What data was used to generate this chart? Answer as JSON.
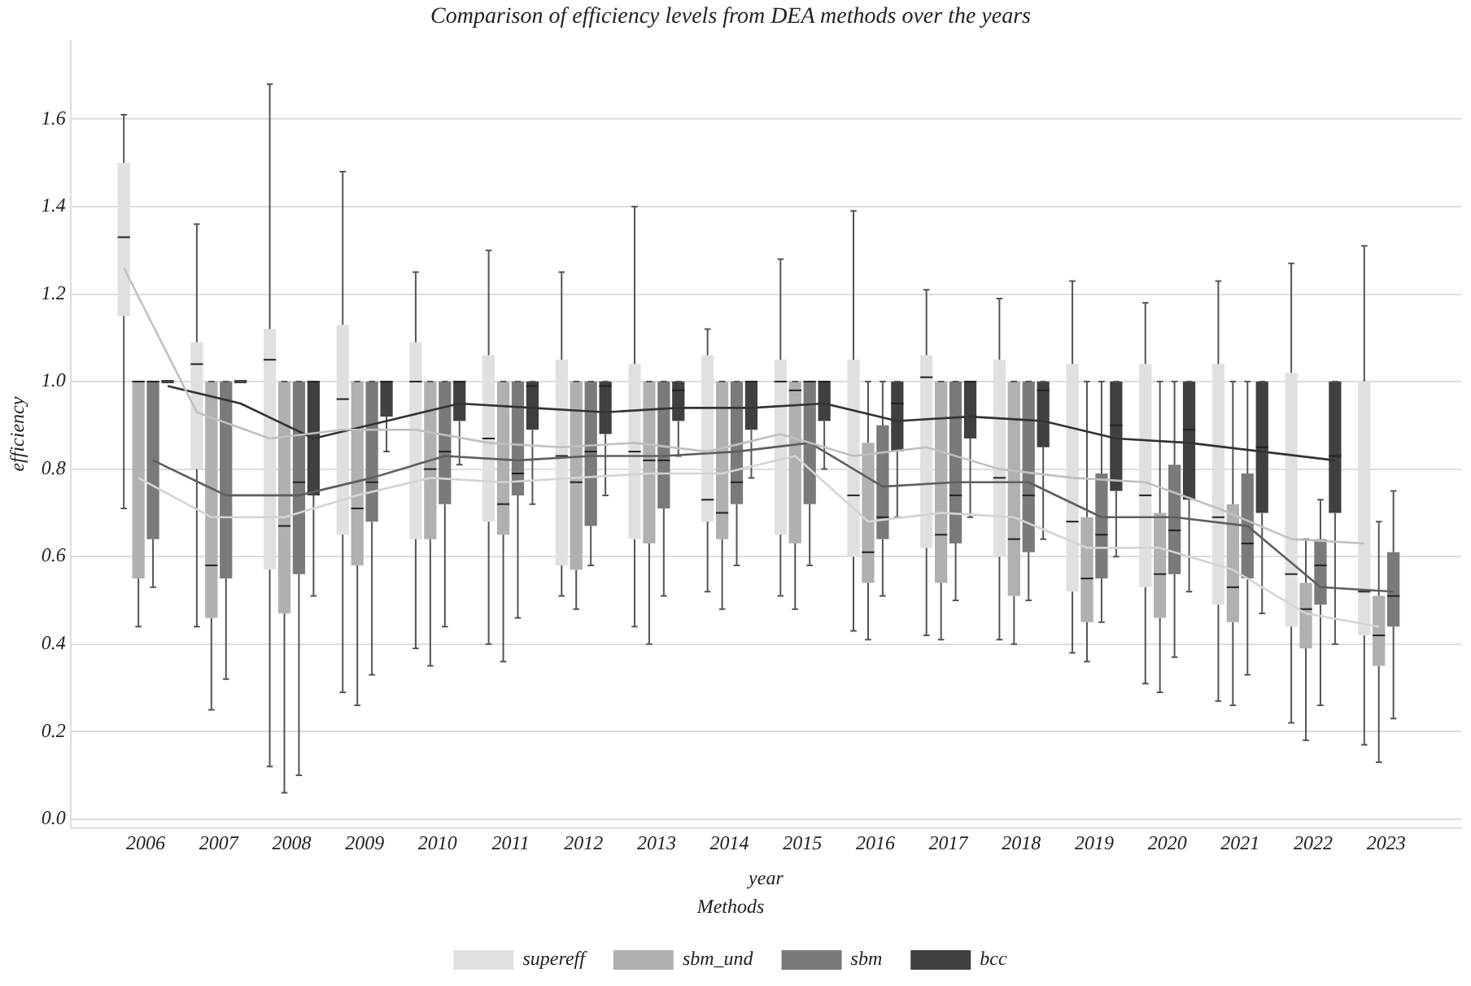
{
  "chart_data": {
    "type": "box",
    "title": "Comparison of efficiency levels from DEA methods over the years",
    "xlabel": "year",
    "ylabel": "efficiency",
    "legend_title": "Methods",
    "legend": "bottom",
    "grid": "y",
    "categories": [
      "2006",
      "2007",
      "2008",
      "2009",
      "2010",
      "2011",
      "2012",
      "2013",
      "2014",
      "2015",
      "2016",
      "2017",
      "2018",
      "2019",
      "2020",
      "2021",
      "2022",
      "2023"
    ],
    "ylim": [
      -0.02,
      1.78
    ],
    "yticks": [
      {
        "value": 0,
        "label": "0.0"
      },
      {
        "value": 0.2,
        "label": "0.2"
      },
      {
        "value": 0.4,
        "label": "0.4"
      },
      {
        "value": 0.6,
        "label": "0.6"
      },
      {
        "value": 0.8,
        "label": "0.8"
      },
      {
        "value": 1,
        "label": "1.0"
      },
      {
        "value": 1.2,
        "label": "1.2"
      },
      {
        "value": 1.4,
        "label": "1.4"
      },
      {
        "value": 1.6,
        "label": "1.6"
      }
    ],
    "series": [
      {
        "name": "supereff",
        "color": "#e0e0e0",
        "boxes": [
          {
            "low": 0.71,
            "q1": 1.15,
            "median": 1.33,
            "q3": 1.5,
            "high": 1.61
          },
          {
            "low": 0.44,
            "q1": 0.8,
            "median": 1.04,
            "q3": 1.09,
            "high": 1.36
          },
          {
            "low": 0.12,
            "q1": 0.57,
            "median": 1.05,
            "q3": 1.12,
            "high": 1.68
          },
          {
            "low": 0.29,
            "q1": 0.65,
            "median": 0.96,
            "q3": 1.13,
            "high": 1.48
          },
          {
            "low": 0.39,
            "q1": 0.64,
            "median": 1.0,
            "q3": 1.09,
            "high": 1.25
          },
          {
            "low": 0.4,
            "q1": 0.68,
            "median": 0.87,
            "q3": 1.06,
            "high": 1.3
          },
          {
            "low": 0.51,
            "q1": 0.58,
            "median": 0.83,
            "q3": 1.05,
            "high": 1.25
          },
          {
            "low": 0.44,
            "q1": 0.64,
            "median": 0.84,
            "q3": 1.04,
            "high": 1.4
          },
          {
            "low": 0.52,
            "q1": 0.68,
            "median": 0.73,
            "q3": 1.06,
            "high": 1.12
          },
          {
            "low": 0.51,
            "q1": 0.65,
            "median": 1.0,
            "q3": 1.05,
            "high": 1.28
          },
          {
            "low": 0.43,
            "q1": 0.6,
            "median": 0.74,
            "q3": 1.05,
            "high": 1.39
          },
          {
            "low": 0.42,
            "q1": 0.62,
            "median": 1.01,
            "q3": 1.06,
            "high": 1.21
          },
          {
            "low": 0.41,
            "q1": 0.6,
            "median": 0.78,
            "q3": 1.05,
            "high": 1.19
          },
          {
            "low": 0.38,
            "q1": 0.52,
            "median": 0.68,
            "q3": 1.04,
            "high": 1.23
          },
          {
            "low": 0.31,
            "q1": 0.53,
            "median": 0.74,
            "q3": 1.04,
            "high": 1.18
          },
          {
            "low": 0.27,
            "q1": 0.49,
            "median": 0.69,
            "q3": 1.04,
            "high": 1.23
          },
          {
            "low": 0.22,
            "q1": 0.44,
            "median": 0.56,
            "q3": 1.02,
            "high": 1.27
          },
          {
            "low": 0.17,
            "q1": 0.42,
            "median": 0.52,
            "q3": 1.0,
            "high": 1.31
          }
        ]
      },
      {
        "name": "sbm_und",
        "color": "#b0b0b0",
        "boxes": [
          {
            "low": 0.44,
            "q1": 0.55,
            "median": 1,
            "q3": 1,
            "high": 1
          },
          {
            "low": 0.25,
            "q1": 0.46,
            "median": 0.58,
            "q3": 1,
            "high": 1
          },
          {
            "low": 0.06,
            "q1": 0.47,
            "median": 0.67,
            "q3": 1,
            "high": 1
          },
          {
            "low": 0.26,
            "q1": 0.58,
            "median": 0.71,
            "q3": 1,
            "high": 1
          },
          {
            "low": 0.35,
            "q1": 0.64,
            "median": 0.8,
            "q3": 1,
            "high": 1
          },
          {
            "low": 0.36,
            "q1": 0.65,
            "median": 0.72,
            "q3": 1,
            "high": 1
          },
          {
            "low": 0.48,
            "q1": 0.57,
            "median": 0.77,
            "q3": 1,
            "high": 1
          },
          {
            "low": 0.4,
            "q1": 0.63,
            "median": 0.82,
            "q3": 1,
            "high": 1
          },
          {
            "low": 0.48,
            "q1": 0.64,
            "median": 0.7,
            "q3": 1,
            "high": 1
          },
          {
            "low": 0.48,
            "q1": 0.63,
            "median": 0.98,
            "q3": 1,
            "high": 1
          },
          {
            "low": 0.41,
            "q1": 0.54,
            "median": 0.61,
            "q3": 0.86,
            "high": 1
          },
          {
            "low": 0.41,
            "q1": 0.54,
            "median": 0.65,
            "q3": 1,
            "high": 1
          },
          {
            "low": 0.4,
            "q1": 0.51,
            "median": 0.64,
            "q3": 1,
            "high": 1
          },
          {
            "low": 0.36,
            "q1": 0.45,
            "median": 0.55,
            "q3": 0.69,
            "high": 1
          },
          {
            "low": 0.29,
            "q1": 0.46,
            "median": 0.56,
            "q3": 0.7,
            "high": 1
          },
          {
            "low": 0.26,
            "q1": 0.45,
            "median": 0.53,
            "q3": 0.72,
            "high": 1
          },
          {
            "low": 0.18,
            "q1": 0.39,
            "median": 0.48,
            "q3": 0.54,
            "high": 0.64
          },
          {
            "low": 0.13,
            "q1": 0.35,
            "median": 0.42,
            "q3": 0.51,
            "high": 0.68
          }
        ]
      },
      {
        "name": "sbm",
        "color": "#7a7a7a",
        "boxes": [
          {
            "low": 0.53,
            "q1": 0.64,
            "median": 1,
            "q3": 1,
            "high": 1
          },
          {
            "low": 0.32,
            "q1": 0.55,
            "median": 0.69,
            "q3": 1,
            "high": 1
          },
          {
            "low": 0.1,
            "q1": 0.56,
            "median": 0.77,
            "q3": 1,
            "high": 1
          },
          {
            "low": 0.33,
            "q1": 0.68,
            "median": 0.77,
            "q3": 1,
            "high": 1
          },
          {
            "low": 0.44,
            "q1": 0.72,
            "median": 0.84,
            "q3": 1,
            "high": 1
          },
          {
            "low": 0.46,
            "q1": 0.74,
            "median": 0.79,
            "q3": 1,
            "high": 1
          },
          {
            "low": 0.58,
            "q1": 0.67,
            "median": 0.84,
            "q3": 1,
            "high": 1
          },
          {
            "low": 0.51,
            "q1": 0.71,
            "median": 0.82,
            "q3": 1,
            "high": 1
          },
          {
            "low": 0.58,
            "q1": 0.72,
            "median": 0.77,
            "q3": 1,
            "high": 1
          },
          {
            "low": 0.58,
            "q1": 0.72,
            "median": 1,
            "q3": 1,
            "high": 1
          },
          {
            "low": 0.51,
            "q1": 0.64,
            "median": 0.69,
            "q3": 0.9,
            "high": 1
          },
          {
            "low": 0.5,
            "q1": 0.63,
            "median": 0.74,
            "q3": 1,
            "high": 1
          },
          {
            "low": 0.5,
            "q1": 0.61,
            "median": 0.74,
            "q3": 1,
            "high": 1
          },
          {
            "low": 0.45,
            "q1": 0.55,
            "median": 0.65,
            "q3": 0.79,
            "high": 1
          },
          {
            "low": 0.37,
            "q1": 0.56,
            "median": 0.66,
            "q3": 0.81,
            "high": 1
          },
          {
            "low": 0.33,
            "q1": 0.55,
            "median": 0.63,
            "q3": 0.79,
            "high": 1
          },
          {
            "low": 0.26,
            "q1": 0.49,
            "median": 0.58,
            "q3": 0.64,
            "high": 0.73
          },
          {
            "low": 0.23,
            "q1": 0.44,
            "median": 0.51,
            "q3": 0.61,
            "high": 0.75
          }
        ]
      },
      {
        "name": "bcc",
        "color": "#404040",
        "boxes": [
          {
            "low": 1,
            "q1": 1,
            "median": 1,
            "q3": 1,
            "high": 1
          },
          {
            "low": 1,
            "q1": 1,
            "median": 1,
            "q3": 1,
            "high": 1
          },
          {
            "low": 0.51,
            "q1": 0.74,
            "median": 1,
            "q3": 1,
            "high": 1
          },
          {
            "low": 0.84,
            "q1": 0.92,
            "median": 1,
            "q3": 1,
            "high": 1
          },
          {
            "low": 0.81,
            "q1": 0.91,
            "median": 1,
            "q3": 1,
            "high": 1
          },
          {
            "low": 0.72,
            "q1": 0.89,
            "median": 0.99,
            "q3": 1,
            "high": 1
          },
          {
            "low": 0.74,
            "q1": 0.88,
            "median": 0.99,
            "q3": 1,
            "high": 1
          },
          {
            "low": 0.83,
            "q1": 0.91,
            "median": 0.98,
            "q3": 1,
            "high": 1
          },
          {
            "low": 0.78,
            "q1": 0.89,
            "median": 1,
            "q3": 1,
            "high": 1
          },
          {
            "low": 0.8,
            "q1": 0.91,
            "median": 1,
            "q3": 1,
            "high": 1
          },
          {
            "low": 0.69,
            "q1": 0.84,
            "median": 0.95,
            "q3": 1,
            "high": 1
          },
          {
            "low": 0.69,
            "q1": 0.87,
            "median": 1,
            "q3": 1,
            "high": 1
          },
          {
            "low": 0.64,
            "q1": 0.85,
            "median": 0.98,
            "q3": 1,
            "high": 1
          },
          {
            "low": 0.6,
            "q1": 0.75,
            "median": 0.9,
            "q3": 1,
            "high": 1
          },
          {
            "low": 0.52,
            "q1": 0.73,
            "median": 0.89,
            "q3": 1,
            "high": 1
          },
          {
            "low": 0.47,
            "q1": 0.7,
            "median": 0.85,
            "q3": 1,
            "high": 1
          },
          {
            "low": 0.4,
            "q1": 0.7,
            "median": 0.83,
            "q3": 1,
            "high": 1
          },
          null
        ]
      },
      {
        "type": "line",
        "color": "#c0c0c0",
        "values": [
          1.26,
          0.93,
          0.87,
          0.89,
          0.89,
          0.86,
          0.85,
          0.86,
          0.84,
          0.88,
          0.83,
          0.85,
          0.8,
          0.78,
          0.77,
          0.71,
          0.64,
          0.63
        ]
      },
      {
        "type": "line",
        "color": "#d4d4d4",
        "values": [
          0.78,
          0.69,
          0.69,
          0.74,
          0.78,
          0.77,
          0.78,
          0.79,
          0.79,
          0.83,
          0.68,
          0.7,
          0.69,
          0.62,
          0.62,
          0.57,
          0.47,
          0.44
        ]
      },
      {
        "type": "line",
        "color": "#5e5e5e",
        "values": [
          0.82,
          0.74,
          0.74,
          0.78,
          0.83,
          0.82,
          0.83,
          0.83,
          0.84,
          0.86,
          0.76,
          0.77,
          0.77,
          0.69,
          0.69,
          0.67,
          0.53,
          0.52
        ]
      },
      {
        "type": "line",
        "color": "#333333",
        "values": [
          0.99,
          0.95,
          0.87,
          0.91,
          0.95,
          0.94,
          0.93,
          0.94,
          0.94,
          0.95,
          0.91,
          0.92,
          0.91,
          0.87,
          0.86,
          0.84,
          0.82,
          null
        ]
      }
    ]
  }
}
